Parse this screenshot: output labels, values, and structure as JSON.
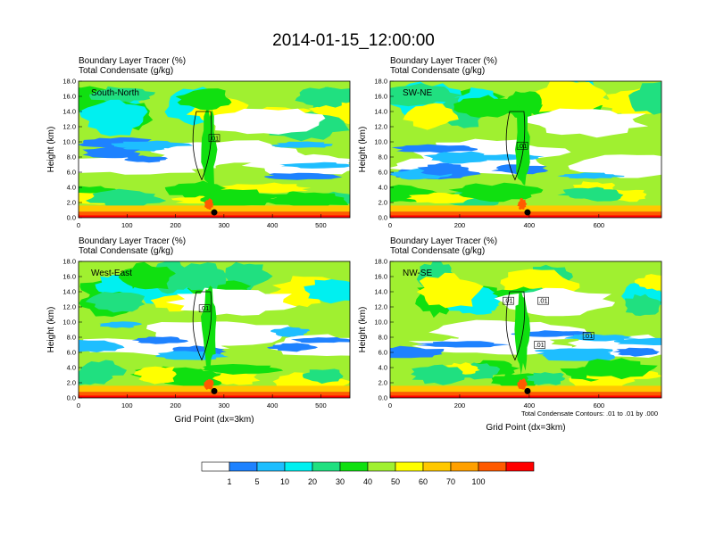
{
  "chart_data": {
    "type": "heatmap",
    "title": "2014-01-15_12:00:00",
    "colorbar": {
      "colors": [
        "#ffffff",
        "#1e82ff",
        "#1ebeff",
        "#00f0f0",
        "#20e080",
        "#10e010",
        "#a0f030",
        "#ffff00",
        "#ffc800",
        "#ffa000",
        "#ff5a00",
        "#ff0000"
      ],
      "labels": [
        "1",
        "5",
        "10",
        "20",
        "30",
        "40",
        "50",
        "60",
        "70",
        "100"
      ]
    },
    "panels": [
      {
        "label": "South-North",
        "subtitle1": "Boundary Layer Tracer   (%)",
        "subtitle2": "Total Condensate   (g/kg)",
        "ylabel": "Height (km)",
        "xlabel": "",
        "xlim": [
          0,
          560
        ],
        "ylim": [
          0,
          18
        ],
        "xticks": [
          "0",
          "100",
          "200",
          "300",
          "400",
          "500"
        ],
        "yticks": [
          "0.0",
          "2.0",
          "4.0",
          "6.0",
          "8.0",
          "10.0",
          "12.0",
          "14.0",
          "16.0",
          "18.0"
        ],
        "contour_labels": [
          {
            "text": ".01",
            "x": 280,
            "y": 10.5
          }
        ],
        "marker": {
          "x": 280,
          "y": 0.7
        }
      },
      {
        "label": "SW-NE",
        "subtitle1": "Boundary Layer Tracer   (%)",
        "subtitle2": "Total Condensate   (g/kg)",
        "ylabel": "Height (km)",
        "xlabel": "",
        "xlim": [
          0,
          780
        ],
        "ylim": [
          0,
          18
        ],
        "xticks": [
          "0",
          "200",
          "400",
          "600"
        ],
        "yticks": [
          "0.0",
          "2.0",
          "4.0",
          "6.0",
          "8.0",
          "10.0",
          "12.0",
          "14.0",
          "16.0",
          "18.0"
        ],
        "contour_labels": [
          {
            "text": ".01",
            "x": 380,
            "y": 9.5
          }
        ],
        "marker": {
          "x": 395,
          "y": 0.7
        }
      },
      {
        "label": "West-East",
        "subtitle1": "Boundary Layer Tracer   (%)",
        "subtitle2": "Total Condensate   (g/kg)",
        "ylabel": "Height (km)",
        "xlabel": "Grid Point (dx=3km)",
        "xlim": [
          0,
          560
        ],
        "ylim": [
          0,
          18
        ],
        "xticks": [
          "0",
          "100",
          "200",
          "300",
          "400",
          "500"
        ],
        "yticks": [
          "0.0",
          "2.0",
          "4.0",
          "6.0",
          "8.0",
          "10.0",
          "12.0",
          "14.0",
          "16.0",
          "18.0"
        ],
        "contour_labels": [
          {
            "text": ".01",
            "x": 260,
            "y": 11.8
          }
        ],
        "marker": {
          "x": 280,
          "y": 0.9
        }
      },
      {
        "label": "NW-SE",
        "subtitle1": "Boundary Layer Tracer   (%)",
        "subtitle2": "Total Condensate   (g/kg)",
        "ylabel": "Height (km)",
        "xlabel": "Grid Point (dx=3km)",
        "xlim": [
          0,
          780
        ],
        "ylim": [
          0,
          18
        ],
        "xticks": [
          "0",
          "200",
          "400",
          "600"
        ],
        "yticks": [
          "0.0",
          "2.0",
          "4.0",
          "6.0",
          "8.0",
          "10.0",
          "12.0",
          "14.0",
          "16.0",
          "18.0"
        ],
        "contour_labels": [
          {
            "text": ".01",
            "x": 340,
            "y": 12.8
          },
          {
            "text": ".01",
            "x": 440,
            "y": 12.8
          },
          {
            "text": ".01",
            "x": 430,
            "y": 7.0
          },
          {
            "text": ".01",
            "x": 570,
            "y": 8.2
          }
        ],
        "marker": {
          "x": 395,
          "y": 0.9
        },
        "note": "Total Condensate Contours: .01 to .01 by .000"
      }
    ]
  }
}
